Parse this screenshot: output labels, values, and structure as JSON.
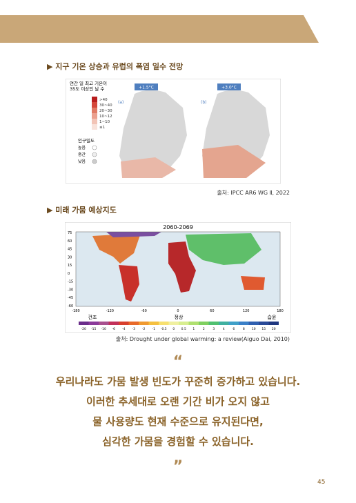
{
  "header": {
    "section1": "▶ 지구 기온 상승과 유럽의 폭염 일수 전망",
    "section2": "▶ 미래 가뭄 예상지도"
  },
  "figure1": {
    "legend_title": "연간 일 최고 기온이\n35도 이상인 날 수",
    "legend_items": [
      ">40",
      "30~40",
      "20~30",
      "10~12",
      "1~10",
      "≤1"
    ],
    "density_title": "인구밀도",
    "density_items": [
      "높음",
      "중간",
      "낮음"
    ],
    "panels": [
      {
        "tag": "+1.5°C",
        "label": "(a)"
      },
      {
        "tag": "+3.0°C",
        "label": "(b)"
      }
    ],
    "source": "출처: IPCC AR6 WG Ⅱ, 2022"
  },
  "figure2": {
    "title": "2060-2069",
    "yticks": [
      "75",
      "60",
      "45",
      "30",
      "15",
      "0",
      "-15",
      "-30",
      "-45",
      "-60"
    ],
    "xticks": [
      "-180",
      "-120",
      "-60",
      "0",
      "60",
      "120",
      "180"
    ],
    "scale_labels": [
      "건조",
      "정상",
      "습윤"
    ],
    "colorbar_ticks": [
      "-20",
      "-15",
      "-10",
      "-6",
      "-4",
      "-3",
      "-2",
      "-1",
      "-0.5",
      "0",
      "0.5",
      "1",
      "2",
      "3",
      "4",
      "6",
      "8",
      "10",
      "15",
      "20"
    ],
    "source": "출처: Drought under global warming: a review(Aiguo Dai, 2010)"
  },
  "quote": {
    "open": "“",
    "lines": [
      "우리나라도 가뭄 발생 빈도가 꾸준히 증가하고 있습니다.",
      "이러한 추세대로 오랜 기간 비가 오지 않고",
      "물 사용량도 현재 수준으로 유지된다면,",
      "심각한 가뭄을 경험할 수 있습니다."
    ],
    "close": "”"
  },
  "footer": {
    "page": "45"
  }
}
